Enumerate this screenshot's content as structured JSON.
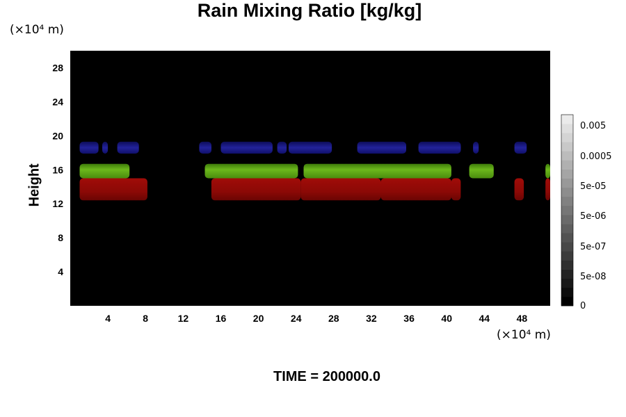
{
  "title": "Rain Mixing Ratio [kg/kg]",
  "y_unit": "(×10⁴ m)",
  "x_unit": "(×10⁴ m)",
  "ylabel": "Height",
  "time_label": "TIME = 200000.0",
  "colors": {
    "background": "#000000",
    "blue": "#1a1a8c",
    "green": "#5aa013",
    "red": "#9b0b07"
  },
  "chart_data": {
    "type": "heatmap",
    "title": "Rain Mixing Ratio [kg/kg]",
    "xlabel": "(×10⁴ m)",
    "ylabel": "Height",
    "xlim": [
      0,
      51
    ],
    "ylim": [
      0,
      30
    ],
    "x_ticks": [
      4,
      8,
      12,
      16,
      20,
      24,
      28,
      32,
      36,
      40,
      44,
      48
    ],
    "y_ticks": [
      4,
      8,
      12,
      16,
      20,
      24,
      28
    ],
    "colorbar": {
      "tick_labels": [
        "0",
        "5e-08",
        "5e-07",
        "5e-06",
        "5e-05",
        "0.0005",
        "0.005"
      ],
      "levels": 21
    },
    "bands": [
      {
        "name": "blue",
        "color": "#1a1a8c",
        "y": [
          17.9,
          19.3
        ],
        "segments": [
          [
            1,
            3
          ],
          [
            3.4,
            4
          ],
          [
            5,
            7.3
          ],
          [
            13.7,
            15
          ],
          [
            16,
            21.5
          ],
          [
            22,
            23
          ],
          [
            23.2,
            27.8
          ],
          [
            30.5,
            35.7
          ],
          [
            37,
            41.5
          ],
          [
            42.8,
            43.4
          ],
          [
            47.2,
            48.5
          ]
        ]
      },
      {
        "name": "green",
        "color": "#5aa013",
        "y": [
          15.0,
          16.7
        ],
        "segments": [
          [
            1,
            6.3
          ],
          [
            14.3,
            24.2
          ],
          [
            24.8,
            40.5
          ],
          [
            42.4,
            45
          ],
          [
            50.5,
            51
          ]
        ]
      },
      {
        "name": "red",
        "color": "#9b0b07",
        "y": [
          12.4,
          15.0
        ],
        "segments": [
          [
            1,
            8.2
          ],
          [
            15,
            24.5
          ],
          [
            24.5,
            33
          ],
          [
            33,
            40.5
          ],
          [
            40.5,
            41.5
          ],
          [
            47.2,
            48.2
          ],
          [
            50.5,
            51
          ]
        ]
      }
    ]
  }
}
